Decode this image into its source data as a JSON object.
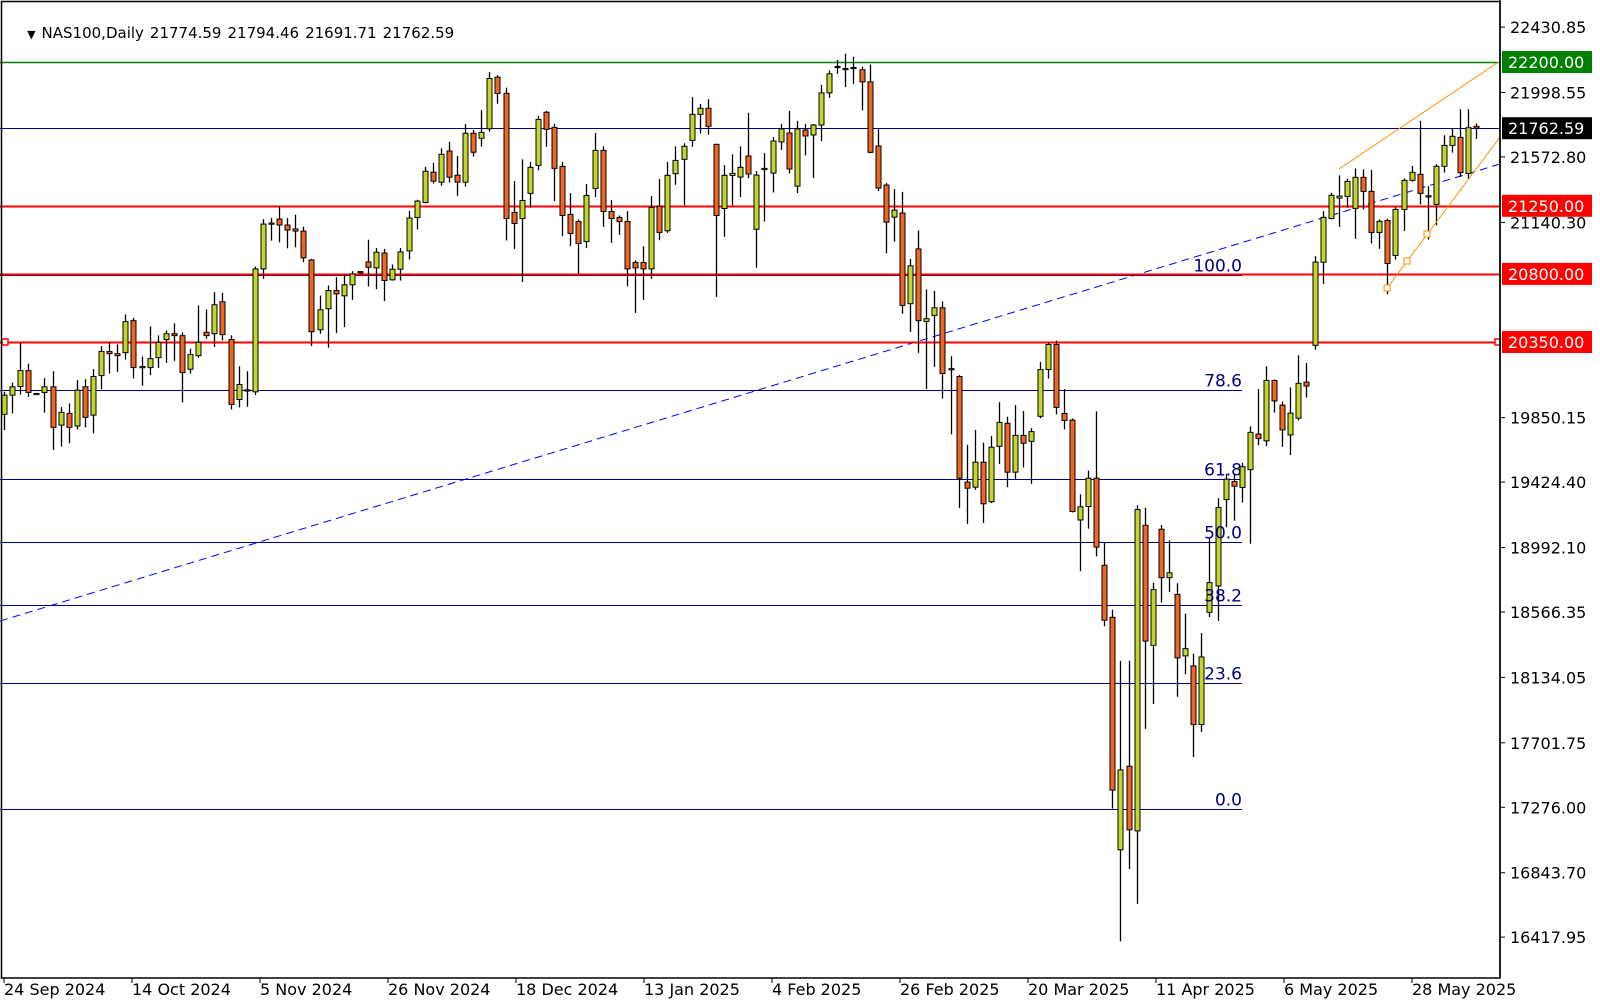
{
  "header": {
    "symbol": "NAS100,Daily",
    "open": "21774.59",
    "high": "21794.46",
    "low": "21691.71",
    "close": "21762.59"
  },
  "chart_data": {
    "type": "candlestick",
    "symbol": "NAS100",
    "timeframe": "Daily",
    "ylim": [
      16380,
      22470
    ],
    "y_ticks": [
      "22430.85",
      "21998.55",
      "21572.80",
      "21140.30",
      "19850.15",
      "19424.40",
      "18992.10",
      "18566.35",
      "18134.05",
      "17701.75",
      "17276.00",
      "16843.70",
      "16417.95"
    ],
    "x_ticks": [
      "24 Sep 2024",
      "14 Oct 2024",
      "5 Nov 2024",
      "26 Nov 2024",
      "18 Dec 2024",
      "13 Jan 2025",
      "4 Feb 2025",
      "26 Feb 2025",
      "20 Mar 2025",
      "11 Apr 2025",
      "6 May 2025",
      "28 May 2025"
    ],
    "colors": {
      "bull": "#c5d62a",
      "bear": "#f26522",
      "outline": "#000000",
      "fib": "#000080",
      "trend": "#0000ff",
      "channel": "#ff8c00"
    },
    "ohlc": [
      [
        19872,
        20021,
        19768,
        19999
      ],
      [
        19999,
        20082,
        19878,
        20054
      ],
      [
        20056,
        20344,
        20003,
        20161
      ],
      [
        20161,
        20207,
        19988,
        20017
      ],
      [
        20010,
        20014,
        20006,
        20010
      ],
      [
        20017,
        20111,
        19883,
        20054
      ],
      [
        20054,
        20157,
        19637,
        19786
      ],
      [
        19801,
        19920,
        19659,
        19885
      ],
      [
        19878,
        19944,
        19681,
        19786
      ],
      [
        19795,
        20098,
        19773,
        20032
      ],
      [
        20054,
        20104,
        19786,
        19852
      ],
      [
        19867,
        20170,
        19747,
        20122
      ],
      [
        20128,
        20322,
        20039,
        20287
      ],
      [
        20287,
        20350,
        20142,
        20273
      ],
      [
        20273,
        20335,
        20153,
        20260
      ],
      [
        20280,
        20532,
        20234,
        20484
      ],
      [
        20491,
        20510,
        20109,
        20181
      ],
      [
        20186,
        20254,
        20061,
        20188
      ],
      [
        20181,
        20453,
        20131,
        20240
      ],
      [
        20247,
        20394,
        20179,
        20348
      ],
      [
        20366,
        20427,
        20212,
        20405
      ],
      [
        20405,
        20473,
        20225,
        20392
      ],
      [
        20392,
        20414,
        19951,
        20148
      ],
      [
        20170,
        20306,
        20142,
        20267
      ],
      [
        20260,
        20592,
        20245,
        20348
      ],
      [
        20414,
        20565,
        20372,
        20392
      ],
      [
        20405,
        20681,
        20317,
        20596
      ],
      [
        20616,
        20675,
        20361,
        20399
      ],
      [
        20366,
        20394,
        19905,
        19938
      ],
      [
        19970,
        20190,
        19918,
        20069
      ],
      [
        20034,
        20157,
        19922,
        20030
      ],
      [
        20021,
        20849,
        20000,
        20833
      ],
      [
        20833,
        21162,
        20767,
        21129
      ],
      [
        21134,
        21169,
        21020,
        21136
      ],
      [
        21162,
        21246,
        21009,
        21123
      ],
      [
        21123,
        21169,
        20969,
        21090
      ],
      [
        21097,
        21191,
        20976,
        21083
      ],
      [
        21083,
        21112,
        20877,
        20906
      ],
      [
        20892,
        20899,
        20324,
        20418
      ],
      [
        20431,
        20657,
        20405,
        20563
      ],
      [
        20570,
        20723,
        20313,
        20690
      ],
      [
        20690,
        20778,
        20409,
        20668
      ],
      [
        20655,
        20794,
        20449,
        20728
      ],
      [
        20728,
        20818,
        20629,
        20800
      ],
      [
        20813,
        20818,
        20800,
        20815
      ],
      [
        20879,
        21026,
        20717,
        20844
      ],
      [
        20840,
        20971,
        20699,
        20943
      ],
      [
        20938,
        20965,
        20620,
        20756
      ],
      [
        20761,
        20862,
        20756,
        20831
      ],
      [
        20831,
        20971,
        20756,
        20945
      ],
      [
        20952,
        21217,
        20895,
        21169
      ],
      [
        21173,
        21290,
        21094,
        21281
      ],
      [
        21272,
        21507,
        21266,
        21478
      ],
      [
        21472,
        21533,
        21397,
        21413
      ],
      [
        21406,
        21630,
        21382,
        21590
      ],
      [
        21612,
        21672,
        21404,
        21439
      ],
      [
        21452,
        21579,
        21316,
        21406
      ],
      [
        21406,
        21790,
        21377,
        21729
      ],
      [
        21729,
        21751,
        21575,
        21604
      ],
      [
        21696,
        21882,
        21641,
        21735
      ],
      [
        21759,
        22133,
        21740,
        22091
      ],
      [
        22100,
        22113,
        21924,
        21992
      ],
      [
        21993,
        22031,
        21021,
        21166
      ],
      [
        21206,
        21413,
        20965,
        21133
      ],
      [
        21166,
        21557,
        20747,
        21285
      ],
      [
        21332,
        21539,
        21237,
        21504
      ],
      [
        21517,
        21843,
        21484,
        21821
      ],
      [
        21868,
        21877,
        21640,
        21755
      ],
      [
        21768,
        21791,
        21281,
        21497
      ],
      [
        21510,
        21539,
        21049,
        21186
      ],
      [
        21193,
        21334,
        20983,
        21067
      ],
      [
        21146,
        21160,
        20802,
        21001
      ],
      [
        21014,
        21393,
        20972,
        21318
      ],
      [
        21365,
        21731,
        21307,
        21616
      ],
      [
        21616,
        21643,
        21111,
        21212
      ],
      [
        21212,
        21288,
        21005,
        21166
      ],
      [
        21173,
        21186,
        21058,
        21146
      ],
      [
        21146,
        21215,
        20718,
        20833
      ],
      [
        20875,
        20890,
        20542,
        20840
      ],
      [
        20875,
        20983,
        20628,
        20833
      ],
      [
        20833,
        21314,
        20767,
        21239
      ],
      [
        21248,
        21427,
        21023,
        21074
      ],
      [
        21085,
        21539,
        21071,
        21451
      ],
      [
        21462,
        21643,
        21389,
        21550
      ],
      [
        21557,
        21663,
        21254,
        21643
      ],
      [
        21682,
        21969,
        21640,
        21854
      ],
      [
        21854,
        21923,
        21727,
        21894
      ],
      [
        21894,
        21954,
        21720,
        21775
      ],
      [
        21656,
        21660,
        20648,
        21186
      ],
      [
        21232,
        21519,
        21045,
        21451
      ],
      [
        21451,
        21590,
        21254,
        21464
      ],
      [
        21440,
        21643,
        21307,
        21504
      ],
      [
        21579,
        21864,
        21433,
        21460
      ],
      [
        21095,
        21479,
        20841,
        21453
      ],
      [
        21495,
        21599,
        21146,
        21497
      ],
      [
        21466,
        21705,
        21338,
        21678
      ],
      [
        21672,
        21791,
        21619,
        21758
      ],
      [
        21731,
        21877,
        21464,
        21493
      ],
      [
        21380,
        21811,
        21334,
        21758
      ],
      [
        21751,
        21791,
        21583,
        21711
      ],
      [
        21718,
        21790,
        21433,
        21784
      ],
      [
        21784,
        22049,
        21676,
        21996
      ],
      [
        21996,
        22144,
        21963,
        22122
      ],
      [
        22169,
        22213,
        22122,
        22171
      ],
      [
        22155,
        22255,
        22034,
        22157
      ],
      [
        22162,
        22235,
        22054,
        22164
      ],
      [
        22149,
        22169,
        21881,
        22069
      ],
      [
        22069,
        22184,
        21597,
        21603
      ],
      [
        21645,
        21756,
        21347,
        21367
      ],
      [
        21387,
        21400,
        20936,
        21142
      ],
      [
        21175,
        21360,
        21013,
        21221
      ],
      [
        21202,
        21342,
        20537,
        20592
      ],
      [
        20603,
        20899,
        20416,
        20853
      ],
      [
        20965,
        21086,
        20278,
        20491
      ],
      [
        20486,
        20697,
        20039,
        20504
      ],
      [
        20526,
        20688,
        20186,
        20576
      ],
      [
        20576,
        20618,
        19977,
        20142
      ],
      [
        20172,
        20256,
        19740,
        20174
      ],
      [
        20122,
        20131,
        19253,
        19450
      ],
      [
        19424,
        19670,
        19148,
        19384
      ],
      [
        19391,
        19769,
        19374,
        19556
      ],
      [
        19556,
        19685,
        19154,
        19281
      ],
      [
        19295,
        19729,
        19286,
        19655
      ],
      [
        19661,
        19953,
        19543,
        19819
      ],
      [
        19813,
        19856,
        19391,
        19490
      ],
      [
        19490,
        19933,
        19446,
        19733
      ],
      [
        19733,
        19894,
        19521,
        19681
      ],
      [
        19694,
        19782,
        19413,
        19758
      ],
      [
        19859,
        20219,
        19846,
        20168
      ],
      [
        20168,
        20346,
        20109,
        20333
      ],
      [
        20333,
        20359,
        19872,
        19918
      ],
      [
        19878,
        20039,
        19773,
        19832
      ],
      [
        19834,
        19845,
        19224,
        19230
      ],
      [
        19174,
        19344,
        18836,
        19261
      ],
      [
        19263,
        19500,
        19117,
        19450
      ],
      [
        19450,
        19892,
        18934,
        18995
      ],
      [
        18875,
        19026,
        18472,
        18512
      ],
      [
        18531,
        18581,
        17267,
        17389
      ],
      [
        16995,
        18243,
        16391,
        17523
      ],
      [
        17547,
        18243,
        16868,
        17127
      ],
      [
        17120,
        19272,
        16638,
        19243
      ],
      [
        19139,
        19256,
        17794,
        18374
      ],
      [
        18346,
        18760,
        17958,
        18714
      ],
      [
        19113,
        19141,
        18629,
        18793
      ],
      [
        18793,
        19039,
        18699,
        18825
      ],
      [
        18682,
        18756,
        18006,
        18263
      ],
      [
        18276,
        18555,
        18155,
        18324
      ],
      [
        18210,
        18291,
        17608,
        17823
      ],
      [
        17823,
        18427,
        17774,
        18269
      ],
      [
        18564,
        19061,
        18533,
        18760
      ],
      [
        18738,
        19318,
        18507,
        19256
      ],
      [
        19309,
        19479,
        19126,
        19444
      ],
      [
        19428,
        19480,
        19170,
        19397
      ],
      [
        19389,
        19552,
        19290,
        19526
      ],
      [
        19507,
        19793,
        19017,
        19753
      ],
      [
        19742,
        20039,
        19668,
        19712
      ],
      [
        19697,
        20190,
        19662,
        20096
      ],
      [
        20096,
        20103,
        19884,
        19961
      ],
      [
        19933,
        19957,
        19657,
        19769
      ],
      [
        19736,
        20050,
        19603,
        19880
      ],
      [
        19847,
        20262,
        19832,
        20077
      ],
      [
        20085,
        20212,
        19983,
        20059
      ],
      [
        20328,
        20917,
        20299,
        20878
      ],
      [
        20877,
        21215,
        20734,
        21173
      ],
      [
        21166,
        21336,
        21160,
        21319
      ],
      [
        21301,
        21451,
        21111,
        21314
      ],
      [
        21312,
        21429,
        21237,
        21411
      ],
      [
        21233,
        21497,
        21032,
        21438
      ],
      [
        21438,
        21491,
        21226,
        21345
      ],
      [
        21345,
        21486,
        21001,
        21074
      ],
      [
        21074,
        21160,
        20966,
        21147
      ],
      [
        21153,
        21165,
        20666,
        20869
      ],
      [
        20922,
        21240,
        20895,
        21226
      ],
      [
        21226,
        21430,
        21083,
        21418
      ],
      [
        21418,
        21513,
        21410,
        21471
      ],
      [
        21458,
        21811,
        21259,
        21332
      ],
      [
        21314,
        21380,
        21027,
        21316
      ],
      [
        21259,
        21525,
        21120,
        21511
      ],
      [
        21511,
        21716,
        21470,
        21649
      ],
      [
        21649,
        21760,
        21601,
        21709
      ],
      [
        21702,
        21888,
        21440,
        21469
      ],
      [
        21464,
        21888,
        21424,
        21766
      ],
      [
        21774.59,
        21794.46,
        21691.71,
        21762.59
      ]
    ],
    "levels": [
      {
        "price": 22200.0,
        "label": "22200.00",
        "color": "#008000"
      },
      {
        "price": 21762.59,
        "label": "21762.59",
        "color": "#000080",
        "label_bg": "#000000"
      },
      {
        "price": 21250.0,
        "label": "21250.00",
        "color": "#ff0000"
      },
      {
        "price": 20800.0,
        "label": "20800.00",
        "color": "#ff0000"
      },
      {
        "price": 20350.0,
        "label": "20350.00",
        "color": "#ff0000"
      }
    ],
    "fibonacci": [
      {
        "label": "100.0",
        "price": 20790
      },
      {
        "label": "78.6",
        "price": 20036
      },
      {
        "label": "61.8",
        "price": 19444
      },
      {
        "label": "50.0",
        "price": 19028
      },
      {
        "label": "38.2",
        "price": 18612
      },
      {
        "label": "23.6",
        "price": 18098
      },
      {
        "label": "0.0",
        "price": 17266
      }
    ]
  }
}
